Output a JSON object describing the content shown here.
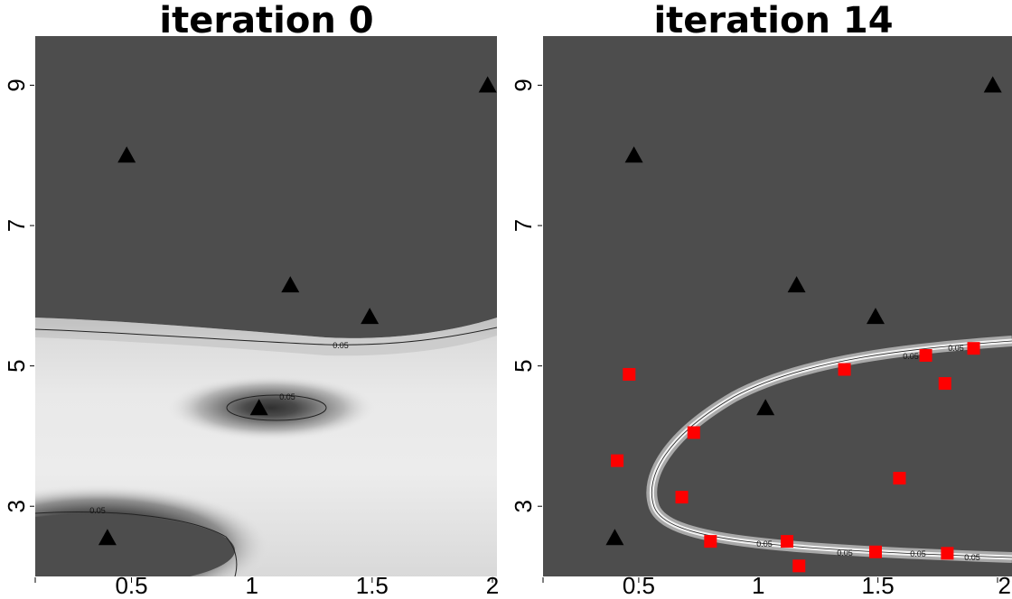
{
  "chart_data": [
    {
      "type": "contour",
      "title": "iteration 0",
      "xlim": [
        0.1,
        2.0
      ],
      "ylim": [
        2.0,
        9.7
      ],
      "x_ticks": [
        "0.5",
        "1",
        "1.5",
        "2"
      ],
      "y_ticks": [
        "3",
        "5",
        "7",
        "9"
      ],
      "contour_level_label": "0.05",
      "background_color": "#4d4d4d",
      "triangles": {
        "x": [
          0.48,
          1.16,
          1.49,
          1.98,
          1.03,
          0.4
        ],
        "y": [
          8.0,
          6.15,
          5.7,
          9.0,
          4.4,
          2.55
        ]
      },
      "squares": {
        "x": [],
        "y": []
      }
    },
    {
      "type": "contour",
      "title": "iteration 14",
      "xlim": [
        0.1,
        2.0
      ],
      "ylim": [
        2.0,
        9.7
      ],
      "x_ticks": [
        "0.5",
        "1",
        "1.5",
        "2"
      ],
      "y_ticks": [
        "3",
        "5",
        "7",
        "9"
      ],
      "contour_level_label": "0.05",
      "background_color": "#4d4d4d",
      "triangles": {
        "x": [
          0.48,
          1.16,
          1.49,
          1.98,
          1.03,
          0.4
        ],
        "y": [
          8.0,
          6.15,
          5.7,
          9.0,
          4.4,
          2.55
        ]
      },
      "squares": {
        "x": [
          0.46,
          0.41,
          0.73,
          0.68,
          0.8,
          1.12,
          1.17,
          1.36,
          1.49,
          1.59,
          1.7,
          1.78,
          1.79,
          1.9
        ],
        "y": [
          4.88,
          3.65,
          4.05,
          3.13,
          2.5,
          2.5,
          2.15,
          4.95,
          2.35,
          3.4,
          5.15,
          4.75,
          2.33,
          5.25
        ]
      }
    }
  ]
}
